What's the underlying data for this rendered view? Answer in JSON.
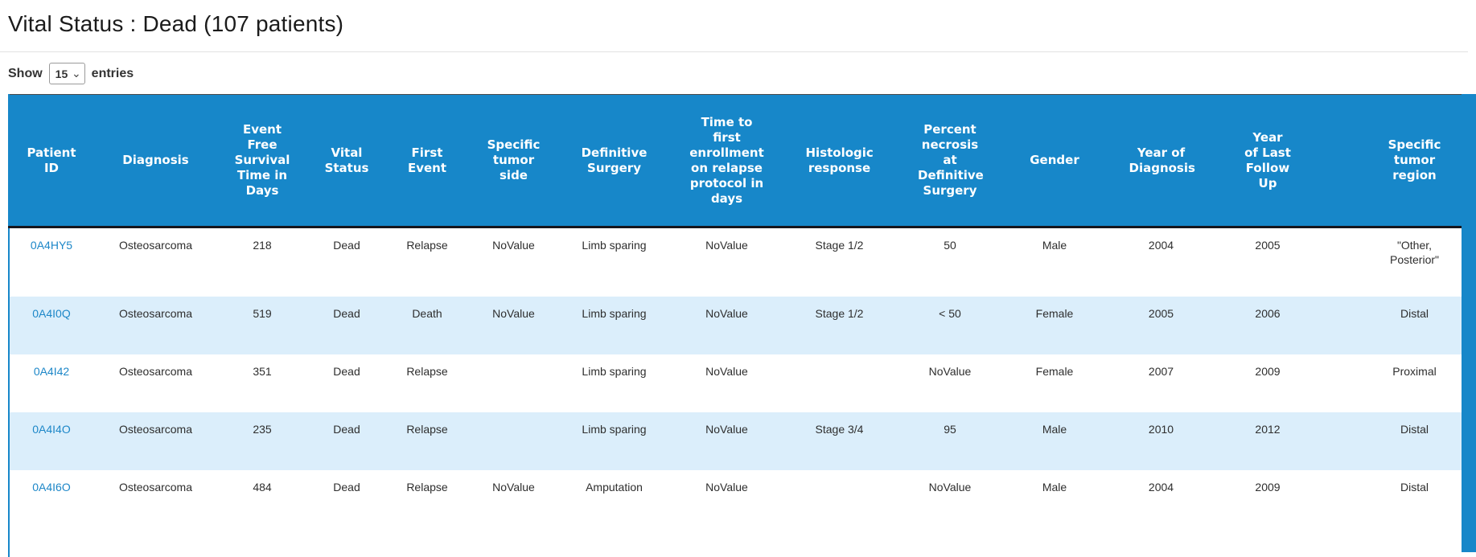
{
  "header": {
    "title": "Vital Status : Dead (107 patients)"
  },
  "controls": {
    "show_label": "Show",
    "entries_label": "entries",
    "page_length": {
      "value": "15",
      "options": [
        "15"
      ]
    },
    "chevron_icon": "⌄"
  },
  "colors": {
    "header_blue": "#1787c9",
    "row_stripe_blue": "#dbeefb",
    "link_blue": "#1d87c8"
  },
  "table": {
    "column_keys": [
      "patient-id",
      "diagnosis",
      "efs-days",
      "vital-status",
      "first-event",
      "tumor-side",
      "definitive-surgery",
      "time-to-relapse-enrollment",
      "histologic-response",
      "percent-necrosis",
      "gender",
      "year-of-diagnosis",
      "year-last-follow-up",
      "tumor-region"
    ],
    "columns": [
      "Patient ID",
      "Diagnosis",
      "Event Free Survival Time in Days",
      "Vital Status",
      "First Event",
      "Specific tumor side",
      "Definitive Surgery",
      "Time to first enrollment on relapse protocol in days",
      "Histologic response",
      "Percent necrosis at Definitive Surgery",
      "Gender",
      "Year of Diagnosis",
      "Year of Last Follow Up",
      "Specific tumor region"
    ],
    "rows": [
      {
        "cells": [
          "0A4HY5",
          "Osteosarcoma",
          "218",
          "Dead",
          "Relapse",
          "NoValue",
          "Limb sparing",
          "NoValue",
          "Stage 1/2",
          "50",
          "Male",
          "2004",
          "2005",
          "\"Other, Posterior\""
        ]
      },
      {
        "cells": [
          "0A4I0Q",
          "Osteosarcoma",
          "519",
          "Dead",
          "Death",
          "NoValue",
          "Limb sparing",
          "NoValue",
          "Stage 1/2",
          "< 50",
          "Female",
          "2005",
          "2006",
          "Distal"
        ]
      },
      {
        "cells": [
          "0A4I42",
          "Osteosarcoma",
          "351",
          "Dead",
          "Relapse",
          "",
          "Limb sparing",
          "NoValue",
          "",
          "NoValue",
          "Female",
          "2007",
          "2009",
          "Proximal"
        ]
      },
      {
        "cells": [
          "0A4I4O",
          "Osteosarcoma",
          "235",
          "Dead",
          "Relapse",
          "",
          "Limb sparing",
          "NoValue",
          "Stage 3/4",
          "95",
          "Male",
          "2010",
          "2012",
          "Distal"
        ]
      },
      {
        "cells": [
          "0A4I6O",
          "Osteosarcoma",
          "484",
          "Dead",
          "Relapse",
          "NoValue",
          "Amputation",
          "NoValue",
          "",
          "NoValue",
          "Male",
          "2004",
          "2009",
          "Distal"
        ]
      }
    ]
  }
}
